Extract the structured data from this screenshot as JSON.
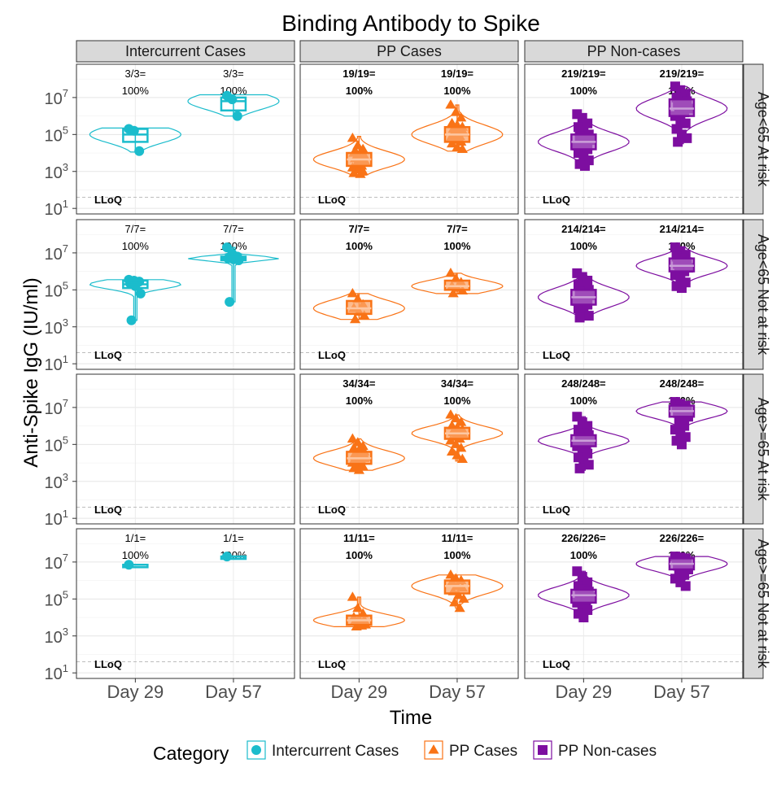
{
  "chart_data": {
    "type": "faceted-violin-box",
    "title": "Binding Antibody to Spike",
    "xlabel": "Time",
    "ylabel": "Anti-Spike IgG (IU/ml)",
    "y_scale": "log10",
    "ylim_log10": [
      0.7,
      8.8
    ],
    "y_ticks": [
      {
        "value": 10,
        "base": "10",
        "exp": "1"
      },
      {
        "value": 1000,
        "base": "10",
        "exp": "3"
      },
      {
        "value": 100000,
        "base": "10",
        "exp": "5"
      },
      {
        "value": 10000000,
        "base": "10",
        "exp": "7"
      }
    ],
    "x_categories": [
      "Day 29",
      "Day 57"
    ],
    "lloq": {
      "label": "LLoQ",
      "value": 40
    },
    "legend": {
      "title": "Category",
      "position": "bottom",
      "entries": [
        {
          "label": "Intercurrent Cases",
          "color": "#1bbccc",
          "shape": "circle"
        },
        {
          "label": "PP Cases",
          "color": "#f97316",
          "shape": "triangle"
        },
        {
          "label": "PP Non-cases",
          "color": "#7d0ea0",
          "shape": "square"
        }
      ]
    },
    "col_facets": [
      "Intercurrent Cases",
      "PP Cases",
      "PP Non-cases"
    ],
    "row_facets": [
      "Age<65 At risk",
      "Age<65 Not at risk",
      "Age>=65 At risk",
      "Age>=65 Not at risk"
    ],
    "panels": [
      {
        "row": 0,
        "col": 0,
        "groups": [
          {
            "x": "Day 29",
            "count_label": "3/3=",
            "pct_label": "100%",
            "median_log10": 5.0,
            "q1_log10": 4.6,
            "q3_log10": 5.3,
            "min_log10": 4.05,
            "max_log10": 5.35,
            "points_log10": [
              5.3,
              5.2,
              4.1
            ]
          },
          {
            "x": "Day 57",
            "count_label": "3/3=",
            "pct_label": "100%",
            "median_log10": 6.8,
            "q1_log10": 6.3,
            "q3_log10": 7.0,
            "min_log10": 6.0,
            "max_log10": 7.15,
            "points_log10": [
              7.1,
              6.9,
              6.0
            ]
          }
        ]
      },
      {
        "row": 0,
        "col": 1,
        "groups": [
          {
            "x": "Day 29",
            "count_label": "19/19=",
            "pct_label": "100%",
            "median_log10": 3.65,
            "q1_log10": 3.3,
            "q3_log10": 4.0,
            "min_log10": 2.8,
            "max_log10": 4.9,
            "points_log10": [
              4.8,
              4.4,
              4.2,
              4.0,
              3.9,
              3.8,
              3.7,
              3.6,
              3.5,
              3.4,
              3.3,
              3.2,
              3.1,
              3.0,
              2.9,
              3.65,
              3.85,
              4.1,
              2.85
            ]
          },
          {
            "x": "Day 57",
            "count_label": "19/19=",
            "pct_label": "100%",
            "median_log10": 5.0,
            "q1_log10": 4.6,
            "q3_log10": 5.4,
            "min_log10": 4.1,
            "max_log10": 6.6,
            "points_log10": [
              6.6,
              6.2,
              5.9,
              5.6,
              5.5,
              5.4,
              5.3,
              5.2,
              5.1,
              5.0,
              4.9,
              4.8,
              4.7,
              4.6,
              4.5,
              4.3,
              4.2,
              5.05,
              4.95
            ]
          }
        ]
      },
      {
        "row": 0,
        "col": 2,
        "groups": [
          {
            "x": "Day 29",
            "count_label": "219/219=",
            "pct_label": "100%",
            "median_log10": 4.6,
            "q1_log10": 4.2,
            "q3_log10": 5.0,
            "min_log10": 3.2,
            "max_log10": 6.1,
            "points_log10": [
              6.1,
              5.9,
              5.6,
              5.4,
              5.2,
              5.0,
              4.9,
              4.8,
              4.7,
              4.6,
              4.5,
              4.4,
              4.3,
              4.2,
              4.0,
              3.8,
              3.6,
              3.4,
              3.3
            ]
          },
          {
            "x": "Day 57",
            "count_label": "219/219=",
            "pct_label": "100%",
            "median_log10": 6.4,
            "q1_log10": 6.0,
            "q3_log10": 6.9,
            "min_log10": 4.5,
            "max_log10": 7.6,
            "points_log10": [
              7.6,
              7.4,
              7.2,
              7.0,
              6.9,
              6.8,
              6.6,
              6.5,
              6.4,
              6.3,
              6.2,
              6.0,
              5.8,
              5.6,
              5.3,
              5.0,
              4.8,
              4.6
            ]
          }
        ]
      },
      {
        "row": 1,
        "col": 0,
        "groups": [
          {
            "x": "Day 29",
            "count_label": "7/7=",
            "pct_label": "100%",
            "median_log10": 5.3,
            "q1_log10": 5.1,
            "q3_log10": 5.5,
            "min_log10": 3.35,
            "max_log10": 5.55,
            "points_log10": [
              5.55,
              5.5,
              5.45,
              5.35,
              5.2,
              4.8,
              3.35
            ]
          },
          {
            "x": "Day 57",
            "count_label": "7/7=",
            "pct_label": "100%",
            "median_log10": 6.7,
            "q1_log10": 6.6,
            "q3_log10": 6.8,
            "min_log10": 4.35,
            "max_log10": 7.3,
            "points_log10": [
              7.3,
              6.95,
              6.8,
              6.7,
              6.65,
              6.6,
              4.35
            ]
          }
        ]
      },
      {
        "row": 1,
        "col": 1,
        "groups": [
          {
            "x": "Day 29",
            "count_label": "7/7=",
            "pct_label": "100%",
            "median_log10": 4.0,
            "q1_log10": 3.7,
            "q3_log10": 4.4,
            "min_log10": 3.4,
            "max_log10": 4.8,
            "points_log10": [
              4.8,
              4.5,
              4.2,
              4.0,
              3.8,
              3.6,
              3.4
            ]
          },
          {
            "x": "Day 57",
            "count_label": "7/7=",
            "pct_label": "100%",
            "median_log10": 5.2,
            "q1_log10": 5.0,
            "q3_log10": 5.5,
            "min_log10": 4.8,
            "max_log10": 5.9,
            "points_log10": [
              5.9,
              5.6,
              5.4,
              5.2,
              5.1,
              4.95,
              4.8
            ]
          }
        ]
      },
      {
        "row": 1,
        "col": 2,
        "groups": [
          {
            "x": "Day 29",
            "count_label": "214/214=",
            "pct_label": "100%",
            "median_log10": 4.6,
            "q1_log10": 4.2,
            "q3_log10": 5.0,
            "min_log10": 3.4,
            "max_log10": 5.9,
            "points_log10": [
              5.9,
              5.7,
              5.5,
              5.3,
              5.1,
              5.0,
              4.9,
              4.8,
              4.7,
              4.6,
              4.5,
              4.4,
              4.3,
              4.2,
              4.0,
              3.8,
              3.6,
              3.5
            ]
          },
          {
            "x": "Day 57",
            "count_label": "214/214=",
            "pct_label": "100%",
            "median_log10": 6.3,
            "q1_log10": 6.0,
            "q3_log10": 6.7,
            "min_log10": 5.1,
            "max_log10": 7.3,
            "points_log10": [
              7.3,
              7.1,
              6.9,
              6.8,
              6.7,
              6.5,
              6.4,
              6.3,
              6.2,
              6.1,
              6.0,
              5.8,
              5.6,
              5.4,
              5.2,
              5.1
            ]
          }
        ]
      },
      {
        "row": 2,
        "col": 0,
        "groups": []
      },
      {
        "row": 2,
        "col": 1,
        "groups": [
          {
            "x": "Day 29",
            "count_label": "34/34=",
            "pct_label": "100%",
            "median_log10": 4.25,
            "q1_log10": 3.95,
            "q3_log10": 4.6,
            "min_log10": 3.6,
            "max_log10": 5.3,
            "points_log10": [
              5.3,
              5.1,
              4.9,
              4.8,
              4.7,
              4.6,
              4.5,
              4.4,
              4.3,
              4.2,
              4.1,
              4.0,
              3.9,
              3.8,
              3.7,
              3.6,
              4.25,
              4.35,
              4.15
            ]
          },
          {
            "x": "Day 57",
            "count_label": "34/34=",
            "pct_label": "100%",
            "median_log10": 5.6,
            "q1_log10": 5.3,
            "q3_log10": 5.9,
            "min_log10": 4.1,
            "max_log10": 6.6,
            "points_log10": [
              6.6,
              6.4,
              6.2,
              6.0,
              5.9,
              5.8,
              5.7,
              5.6,
              5.5,
              5.4,
              5.3,
              5.2,
              5.0,
              4.8,
              4.6,
              4.4,
              4.2,
              5.65
            ]
          }
        ]
      },
      {
        "row": 2,
        "col": 2,
        "groups": [
          {
            "x": "Day 29",
            "count_label": "248/248=",
            "pct_label": "100%",
            "median_log10": 5.2,
            "q1_log10": 4.9,
            "q3_log10": 5.5,
            "min_log10": 3.6,
            "max_log10": 6.5,
            "points_log10": [
              6.5,
              6.2,
              6.0,
              5.8,
              5.6,
              5.5,
              5.4,
              5.3,
              5.2,
              5.1,
              5.0,
              4.9,
              4.7,
              4.5,
              4.3,
              4.1,
              3.9,
              3.7
            ]
          },
          {
            "x": "Day 57",
            "count_label": "248/248=",
            "pct_label": "100%",
            "median_log10": 6.8,
            "q1_log10": 6.5,
            "q3_log10": 7.1,
            "min_log10": 4.9,
            "max_log10": 7.3,
            "points_log10": [
              7.3,
              7.2,
              7.1,
              7.0,
              6.9,
              6.8,
              6.7,
              6.6,
              6.5,
              6.3,
              6.0,
              5.8,
              5.6,
              5.4,
              5.2,
              5.0
            ]
          }
        ]
      },
      {
        "row": 3,
        "col": 0,
        "groups": [
          {
            "x": "Day 29",
            "count_label": "1/1=",
            "pct_label": "100%",
            "median_log10": 6.85,
            "q1_log10": 6.85,
            "q3_log10": 6.85,
            "min_log10": 6.85,
            "max_log10": 6.85,
            "points_log10": [
              6.85
            ]
          },
          {
            "x": "Day 57",
            "count_label": "1/1=",
            "pct_label": "100%",
            "median_log10": 7.3,
            "q1_log10": 7.3,
            "q3_log10": 7.3,
            "min_log10": 7.3,
            "max_log10": 7.3,
            "points_log10": [
              7.3
            ]
          }
        ]
      },
      {
        "row": 3,
        "col": 1,
        "groups": [
          {
            "x": "Day 29",
            "count_label": "11/11=",
            "pct_label": "100%",
            "median_log10": 3.85,
            "q1_log10": 3.6,
            "q3_log10": 4.1,
            "min_log10": 3.5,
            "max_log10": 5.1,
            "points_log10": [
              5.1,
              4.5,
              4.2,
              4.0,
              3.9,
              3.85,
              3.8,
              3.7,
              3.6,
              3.5,
              3.55
            ]
          },
          {
            "x": "Day 57",
            "count_label": "11/11=",
            "pct_label": "100%",
            "median_log10": 5.7,
            "q1_log10": 5.3,
            "q3_log10": 6.0,
            "min_log10": 4.5,
            "max_log10": 6.3,
            "points_log10": [
              6.3,
              6.1,
              6.0,
              5.9,
              5.7,
              5.6,
              5.4,
              5.2,
              5.0,
              4.8,
              4.5
            ]
          }
        ]
      },
      {
        "row": 3,
        "col": 2,
        "groups": [
          {
            "x": "Day 29",
            "count_label": "226/226=",
            "pct_label": "100%",
            "median_log10": 5.2,
            "q1_log10": 4.8,
            "q3_log10": 5.5,
            "min_log10": 4.0,
            "max_log10": 6.5,
            "points_log10": [
              6.5,
              6.2,
              5.9,
              5.7,
              5.5,
              5.4,
              5.3,
              5.2,
              5.1,
              5.0,
              4.9,
              4.8,
              4.6,
              4.4,
              4.2,
              4.0
            ]
          },
          {
            "x": "Day 57",
            "count_label": "226/226=",
            "pct_label": "100%",
            "median_log10": 6.9,
            "q1_log10": 6.6,
            "q3_log10": 7.2,
            "min_log10": 5.7,
            "max_log10": 7.3,
            "points_log10": [
              7.3,
              7.25,
              7.2,
              7.1,
              7.0,
              6.9,
              6.8,
              6.7,
              6.6,
              6.5,
              6.3,
              6.1,
              5.9,
              5.7
            ]
          }
        ]
      }
    ]
  }
}
